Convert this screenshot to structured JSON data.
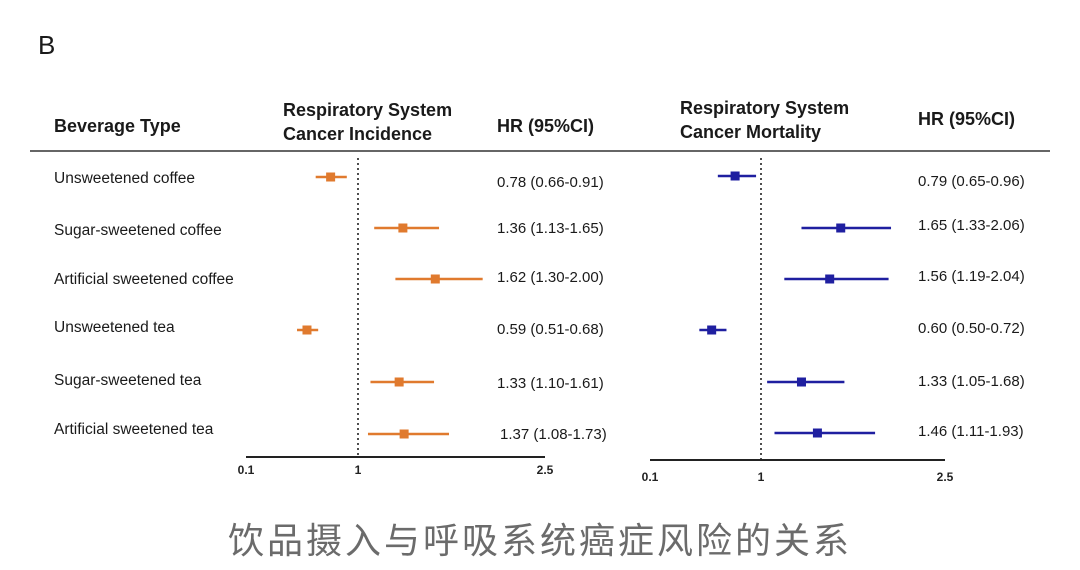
{
  "panel_label": "B",
  "headers": {
    "beverage_type": "Beverage Type",
    "incidence_line1": "Respiratory System",
    "incidence_line2": "Cancer Incidence",
    "hr_left": "HR (95%CI)",
    "mortality_line1": "Respiratory System",
    "mortality_line2": "Cancer Mortality",
    "hr_right": "HR (95%CI)"
  },
  "rows": [
    {
      "label": "Unsweetened coffee",
      "incidence_text": "0.78 (0.66-0.91)",
      "mortality_text": "0.79 (0.65-0.96)"
    },
    {
      "label": "Sugar-sweetened coffee",
      "incidence_text": "1.36 (1.13-1.65)",
      "mortality_text": "1.65 (1.33-2.06)"
    },
    {
      "label": "Artificial sweetened coffee",
      "incidence_text": "1.62 (1.30-2.00)",
      "mortality_text": "1.56 (1.19-2.04)"
    },
    {
      "label": "Unsweetened tea",
      "incidence_text": "0.59 (0.51-0.68)",
      "mortality_text": "0.60 (0.50-0.72)"
    },
    {
      "label": "Sugar-sweetened tea",
      "incidence_text": "1.33 (1.10-1.61)",
      "mortality_text": "1.33 (1.05-1.68)"
    },
    {
      "label": "Artificial sweetened tea",
      "incidence_text": "1.37 (1.08-1.73)",
      "mortality_text": "1.46 (1.11-1.93)"
    }
  ],
  "caption": "饮品摄入与呼吸系统癌症风险的关系",
  "chart_data": [
    {
      "type": "forest",
      "title": "Respiratory System Cancer Incidence",
      "color": "#e07a2e",
      "x_ticks": [
        "0.1",
        "1",
        "2.5"
      ],
      "reference_line": 1,
      "categories": [
        "Unsweetened coffee",
        "Sugar-sweetened coffee",
        "Artificial sweetened coffee",
        "Unsweetened tea",
        "Sugar-sweetened tea",
        "Artificial sweetened tea"
      ],
      "hr": [
        0.78,
        1.36,
        1.62,
        0.59,
        1.33,
        1.37
      ],
      "lower": [
        0.66,
        1.13,
        1.3,
        0.51,
        1.1,
        1.08
      ],
      "upper": [
        0.91,
        1.65,
        2.0,
        0.68,
        1.61,
        1.73
      ]
    },
    {
      "type": "forest",
      "title": "Respiratory System Cancer Mortality",
      "color": "#1f1fa0",
      "x_ticks": [
        "0.1",
        "1",
        "2.5"
      ],
      "reference_line": 1,
      "categories": [
        "Unsweetened coffee",
        "Sugar-sweetened coffee",
        "Artificial sweetened coffee",
        "Unsweetened tea",
        "Sugar-sweetened tea",
        "Artificial sweetened tea"
      ],
      "hr": [
        0.79,
        1.65,
        1.56,
        0.6,
        1.33,
        1.46
      ],
      "lower": [
        0.65,
        1.33,
        1.19,
        0.5,
        1.05,
        1.11
      ],
      "upper": [
        0.96,
        2.06,
        2.04,
        0.72,
        1.68,
        1.93
      ]
    }
  ]
}
